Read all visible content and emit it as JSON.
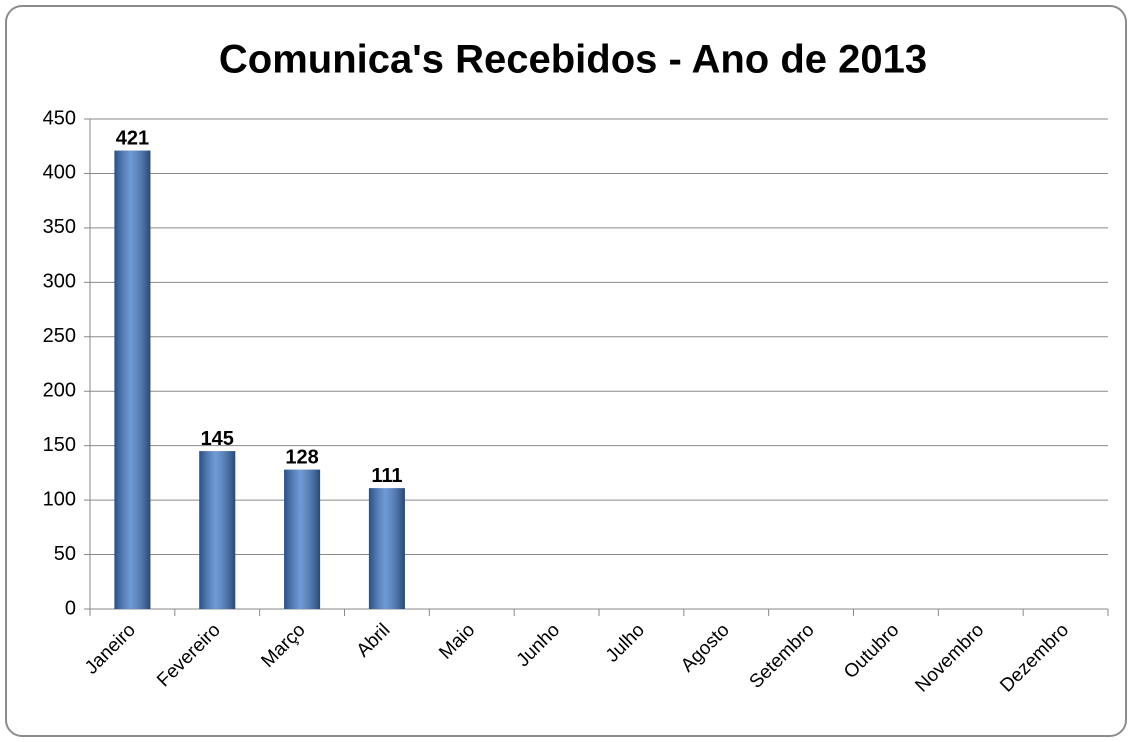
{
  "chart_data": {
    "type": "bar",
    "title": "Comunica's Recebidos - Ano de 2013",
    "categories": [
      "Janeiro",
      "Fevereiro",
      "Março",
      "Abril",
      "Maio",
      "Junho",
      "Julho",
      "Agosto",
      "Setembro",
      "Outubro",
      "Novembro",
      "Dezembro"
    ],
    "values": [
      421,
      145,
      128,
      111,
      null,
      null,
      null,
      null,
      null,
      null,
      null,
      null
    ],
    "color": "#3f78c8",
    "ylim": [
      0,
      450
    ],
    "yticks": [
      0,
      50,
      100,
      150,
      200,
      250,
      300,
      350,
      400,
      450
    ],
    "grid": true
  }
}
